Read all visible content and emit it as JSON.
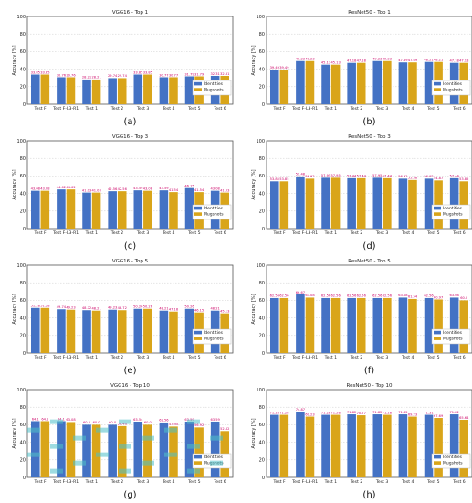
{
  "chart_data": [
    {
      "type": "bar",
      "panel_label": "(a)",
      "title": "VGG16 - Top 1",
      "ylabel": "Accuracy [%]",
      "ylim": [
        0,
        100
      ],
      "grid": true,
      "legend": "bottom-right",
      "categories": [
        "Test F",
        "Test F-L3-R1",
        "Test 1",
        "Test 2",
        "Test 3",
        "Test 4",
        "Test 5",
        "Test 6"
      ],
      "series": [
        {
          "name": "Identities",
          "values": [
            33.85,
            30.76,
            28.21,
            29.74,
            33.85,
            30.77,
            31.79,
            32.31
          ]
        },
        {
          "name": "Mugshots",
          "values": [
            33.85,
            30.76,
            28.21,
            29.74,
            33.85,
            30.77,
            31.79,
            32.31
          ]
        }
      ],
      "data_labels": [
        [
          "33.85",
          "30.76",
          "28.21",
          "29.74",
          "33.85",
          "30.77",
          "31.79",
          "32.31"
        ],
        [
          "33.85",
          "30.76",
          "28.21",
          "29.74",
          "33.85",
          "30.77",
          "31.79",
          "32.31"
        ]
      ]
    },
    {
      "type": "bar",
      "panel_label": "(b)",
      "title": "ResNet50 - Top 1",
      "ylabel": "Accuracy [%]",
      "ylim": [
        0,
        100
      ],
      "grid": true,
      "legend": "bottom-right",
      "categories": [
        "Test F",
        "Test F-L3-R1",
        "Test 1",
        "Test 2",
        "Test 3",
        "Test 4",
        "Test 5",
        "Test 6"
      ],
      "series": [
        {
          "name": "Identities",
          "values": [
            39.49,
            49.23,
            45.13,
            47.18,
            49.23,
            47.69,
            48.21,
            47.18
          ]
        },
        {
          "name": "Mugshots",
          "values": [
            39.49,
            49.23,
            45.13,
            47.18,
            49.23,
            47.69,
            48.21,
            47.18
          ]
        }
      ],
      "data_labels": [
        [
          "39.49",
          "49.23",
          "45.13",
          "47.18",
          "49.23",
          "47.69",
          "48.21",
          "47.18"
        ],
        [
          "39.49",
          "49.23",
          "45.13",
          "47.18",
          "49.23",
          "47.69",
          "48.21",
          "47.18"
        ]
      ]
    },
    {
      "type": "bar",
      "panel_label": "(c)",
      "title": "VGG16 - Top 3",
      "ylabel": "Accuracy [%]",
      "ylim": [
        0,
        100
      ],
      "grid": true,
      "legend": "bottom-right",
      "categories": [
        "Test F",
        "Test F-L3-R1",
        "Test 1",
        "Test 2",
        "Test 3",
        "Test 4",
        "Test 5",
        "Test 6"
      ],
      "series": [
        {
          "name": "Identities",
          "values": [
            43.08,
            44.62,
            41.03,
            42.56,
            43.59,
            43.59,
            46.15,
            43.08
          ]
        },
        {
          "name": "Mugshots",
          "values": [
            43.08,
            44.62,
            41.03,
            42.56,
            43.08,
            41.54,
            41.54,
            41.03
          ]
        }
      ],
      "data_labels": [
        [
          "43.08",
          "44.62",
          "41.03",
          "42.56",
          "43.59",
          "43.59",
          "46.15",
          "43.08"
        ],
        [
          "43.08",
          "44.62",
          "41.03",
          "42.56",
          "43.08",
          "41.54",
          "41.54",
          "41.03"
        ]
      ]
    },
    {
      "type": "bar",
      "panel_label": "(d)",
      "title": "ResNet50 - Top 3",
      "ylabel": "Accuracy [%]",
      "ylim": [
        0,
        100
      ],
      "grid": true,
      "legend": "bottom-right",
      "categories": [
        "Test F",
        "Test F-L3-R1",
        "Test 1",
        "Test 2",
        "Test 3",
        "Test 4",
        "Test 5",
        "Test 6"
      ],
      "series": [
        {
          "name": "Identities",
          "values": [
            53.85,
            59.48,
            57.95,
            57.44,
            57.95,
            56.92,
            56.92,
            57.44
          ]
        },
        {
          "name": "Mugshots",
          "values": [
            53.85,
            56.92,
            57.95,
            57.44,
            57.44,
            55.38,
            54.87,
            53.85
          ]
        }
      ],
      "data_labels": [
        [
          "53.85",
          "59.48",
          "57.95",
          "57.44",
          "57.95",
          "56.92",
          "56.92",
          "57.44"
        ],
        [
          "53.85",
          "56.92",
          "57.95",
          "57.44",
          "57.44",
          "55.38",
          "54.87",
          "53.85"
        ]
      ]
    },
    {
      "type": "bar",
      "panel_label": "(e)",
      "title": "VGG16 - Top 5",
      "ylabel": "Accuracy [%]",
      "ylim": [
        0,
        100
      ],
      "grid": true,
      "legend": "bottom-right",
      "categories": [
        "Test F",
        "Test F-L3-R1",
        "Test 1",
        "Test 2",
        "Test 3",
        "Test 4",
        "Test 5",
        "Test 6"
      ],
      "series": [
        {
          "name": "Identities",
          "values": [
            51.28,
            49.74,
            48.72,
            49.23,
            50.26,
            48.21,
            50.26,
            48.21
          ]
        },
        {
          "name": "Mugshots",
          "values": [
            51.28,
            49.23,
            48.21,
            48.72,
            50.26,
            47.18,
            46.15,
            45.13
          ]
        }
      ],
      "data_labels": [
        [
          "51.28",
          "49.74",
          "48.72",
          "49.23",
          "50.26",
          "48.21",
          "50.26",
          "48.21"
        ],
        [
          "51.28",
          "49.23",
          "48.21",
          "48.72",
          "50.26",
          "47.18",
          "46.15",
          "45.13"
        ]
      ]
    },
    {
      "type": "bar",
      "panel_label": "(f)",
      "title": "ResNet50 - Top 5",
      "ylabel": "Accuracy [%]",
      "ylim": [
        0,
        100
      ],
      "grid": true,
      "legend": "bottom-right",
      "categories": [
        "Test F",
        "Test F-L3-R1",
        "Test 1",
        "Test 2",
        "Test 3",
        "Test 4",
        "Test 5",
        "Test 6"
      ],
      "series": [
        {
          "name": "Identities",
          "values": [
            62.56,
            66.67,
            62.56,
            62.56,
            62.56,
            63.08,
            62.56,
            63.08
          ]
        },
        {
          "name": "Mugshots",
          "values": [
            62.56,
            63.08,
            62.56,
            62.56,
            62.56,
            61.54,
            60.97,
            60.0
          ]
        }
      ],
      "data_labels": [
        [
          "62.56",
          "66.67",
          "62.56",
          "62.56",
          "62.56",
          "63.08",
          "62.56",
          "63.08"
        ],
        [
          "62.56",
          "63.08",
          "62.56",
          "62.56",
          "62.56",
          "61.54",
          "60.97",
          "60.0"
        ]
      ]
    },
    {
      "type": "bar",
      "panel_label": "(g)",
      "title": "VGG16 - Top 10",
      "ylabel": "Accuracy [%]",
      "ylim": [
        0,
        100
      ],
      "grid": true,
      "legend": "bottom-right",
      "categories": [
        "Test F",
        "Test F-L3-R1",
        "Test 1",
        "Test 2",
        "Test 3",
        "Test 4",
        "Test 5",
        "Test 6"
      ],
      "series": [
        {
          "name": "Identities",
          "values": [
            64.1,
            64.1,
            60.0,
            60.0,
            63.54,
            62.56,
            63.59,
            63.59
          ]
        },
        {
          "name": "Mugshots",
          "values": [
            64.1,
            63.08,
            60.0,
            58.46,
            60.0,
            57.95,
            56.92,
            52.82
          ]
        }
      ],
      "data_labels": [
        [
          "64.1",
          "64.1",
          "60.0",
          "60.0",
          "63.54",
          "62.56",
          "63.59",
          "63.59"
        ],
        [
          "64.1",
          "63.08",
          "60.0",
          "58.46",
          "60.0",
          "57.95",
          "56.92",
          "52.82"
        ]
      ]
    },
    {
      "type": "bar",
      "panel_label": "(h)",
      "title": "ResNet50 - Top 10",
      "ylabel": "Accuracy [%]",
      "ylim": [
        0,
        100
      ],
      "grid": true,
      "legend": "bottom-right",
      "categories": [
        "Test F",
        "Test F-L3-R1",
        "Test 1",
        "Test 2",
        "Test 3",
        "Test 4",
        "Test 5",
        "Test 6"
      ],
      "series": [
        {
          "name": "Identities",
          "values": [
            71.28,
            74.87,
            71.28,
            71.82,
            71.82,
            71.82,
            71.31,
            71.82
          ]
        },
        {
          "name": "Mugshots",
          "values": [
            71.28,
            69.23,
            71.28,
            70.77,
            71.28,
            69.23,
            67.69,
            65.64
          ]
        }
      ],
      "data_labels": [
        [
          "71.28",
          "74.87",
          "71.28",
          "71.82",
          "71.82",
          "71.82",
          "71.31",
          "71.82"
        ],
        [
          "71.28",
          "69.23",
          "71.28",
          "70.77",
          "71.28",
          "69.23",
          "67.69",
          "65.64"
        ]
      ]
    }
  ],
  "styles": {
    "identities_color": "#4472c4",
    "mugshots_color": "#d9a51a",
    "grid_color": "#cccccc",
    "frame_color": "#555555",
    "value_label_color": "#cc0066",
    "stripe_colors": [
      "#e0507a",
      "#4fc1c9",
      "#b58cd6"
    ]
  }
}
